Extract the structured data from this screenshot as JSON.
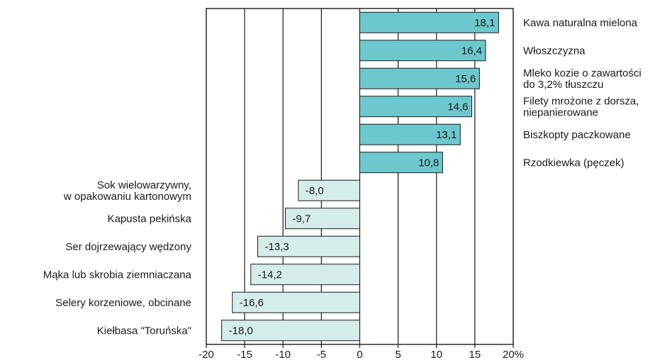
{
  "chart_data": {
    "type": "bar",
    "orientation": "horizontal",
    "categories": [
      "Kawa naturalna mielona",
      "Włoszczyzna",
      "Mleko kozie o zawartości\ndo 3,2% tłuszczu",
      "Filety mrożone z dorsza,\nniepanierowane",
      "Biszkopty paczkowane",
      "Rzodkiewka (pęczek)",
      "Sok wielowarzywny,\nw opakowaniu kartonowym",
      "Kapusta pekińska",
      "Ser dojrzewający wędzony",
      "Mąka lub skrobia ziemniaczana",
      "Selery korzeniowe, obcinane",
      "Kiełbasa \"Toruńska\""
    ],
    "values": [
      18.1,
      16.4,
      15.6,
      14.6,
      13.1,
      10.8,
      -8.0,
      -9.7,
      -13.3,
      -14.2,
      -16.6,
      -18.0
    ],
    "value_labels": [
      "18,1",
      "16,4",
      "15,6",
      "14,6",
      "13,1",
      "10,8",
      "-8,0",
      "-9,7",
      "-13,3",
      "-14,2",
      "-16,6",
      "-18,0"
    ],
    "xlim": [
      -20,
      20
    ],
    "xticks": [
      -20,
      -15,
      -10,
      -5,
      0,
      5,
      10,
      15,
      20
    ],
    "xtick_labels": [
      "-20",
      "-15",
      "-10",
      "-5",
      "0",
      "5",
      "10",
      "15",
      "20%"
    ],
    "grid": "vertical",
    "colors": {
      "positive": "#6dc8cd",
      "negative": "#d4ecea",
      "edge": "#1a1a1a"
    },
    "title": "",
    "xlabel": "",
    "ylabel": ""
  }
}
